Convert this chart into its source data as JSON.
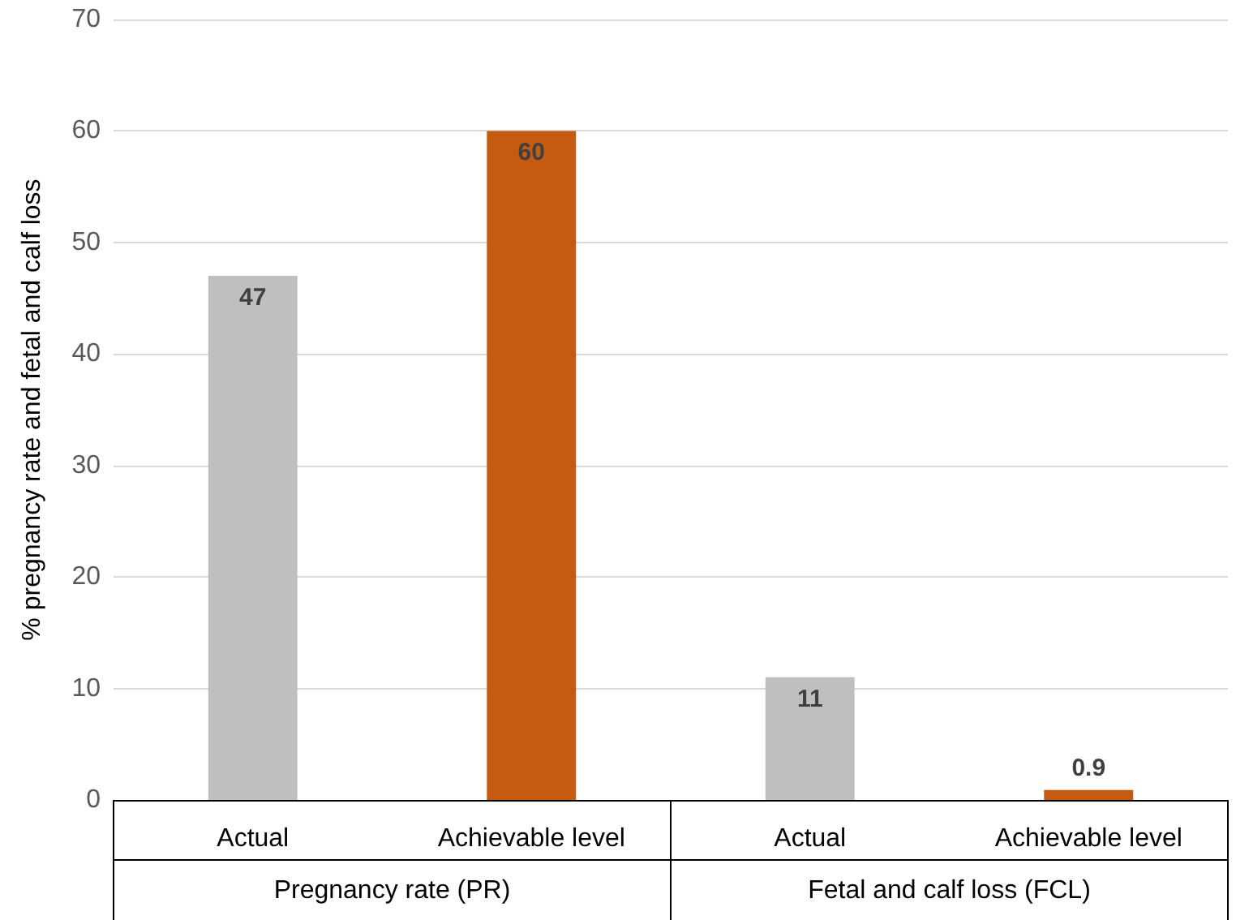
{
  "chart_data": {
    "type": "bar",
    "ylabel": "% pregnancy rate and fetal and calf loss",
    "categories": [
      "Actual",
      "Achievable level",
      "Actual",
      "Achievable level"
    ],
    "values": [
      47,
      60,
      11,
      0.9
    ],
    "colors": [
      "#bfbfbf",
      "#c55a11",
      "#bfbfbf",
      "#c55a11"
    ],
    "ylim": [
      0,
      70
    ],
    "yticks": [
      0,
      10,
      20,
      30,
      40,
      50,
      60,
      70
    ],
    "grid": "y",
    "data_labels": true,
    "annotations": [
      "Pregnancy rate (PR)",
      "Fetal and calf loss (FCL)"
    ]
  }
}
